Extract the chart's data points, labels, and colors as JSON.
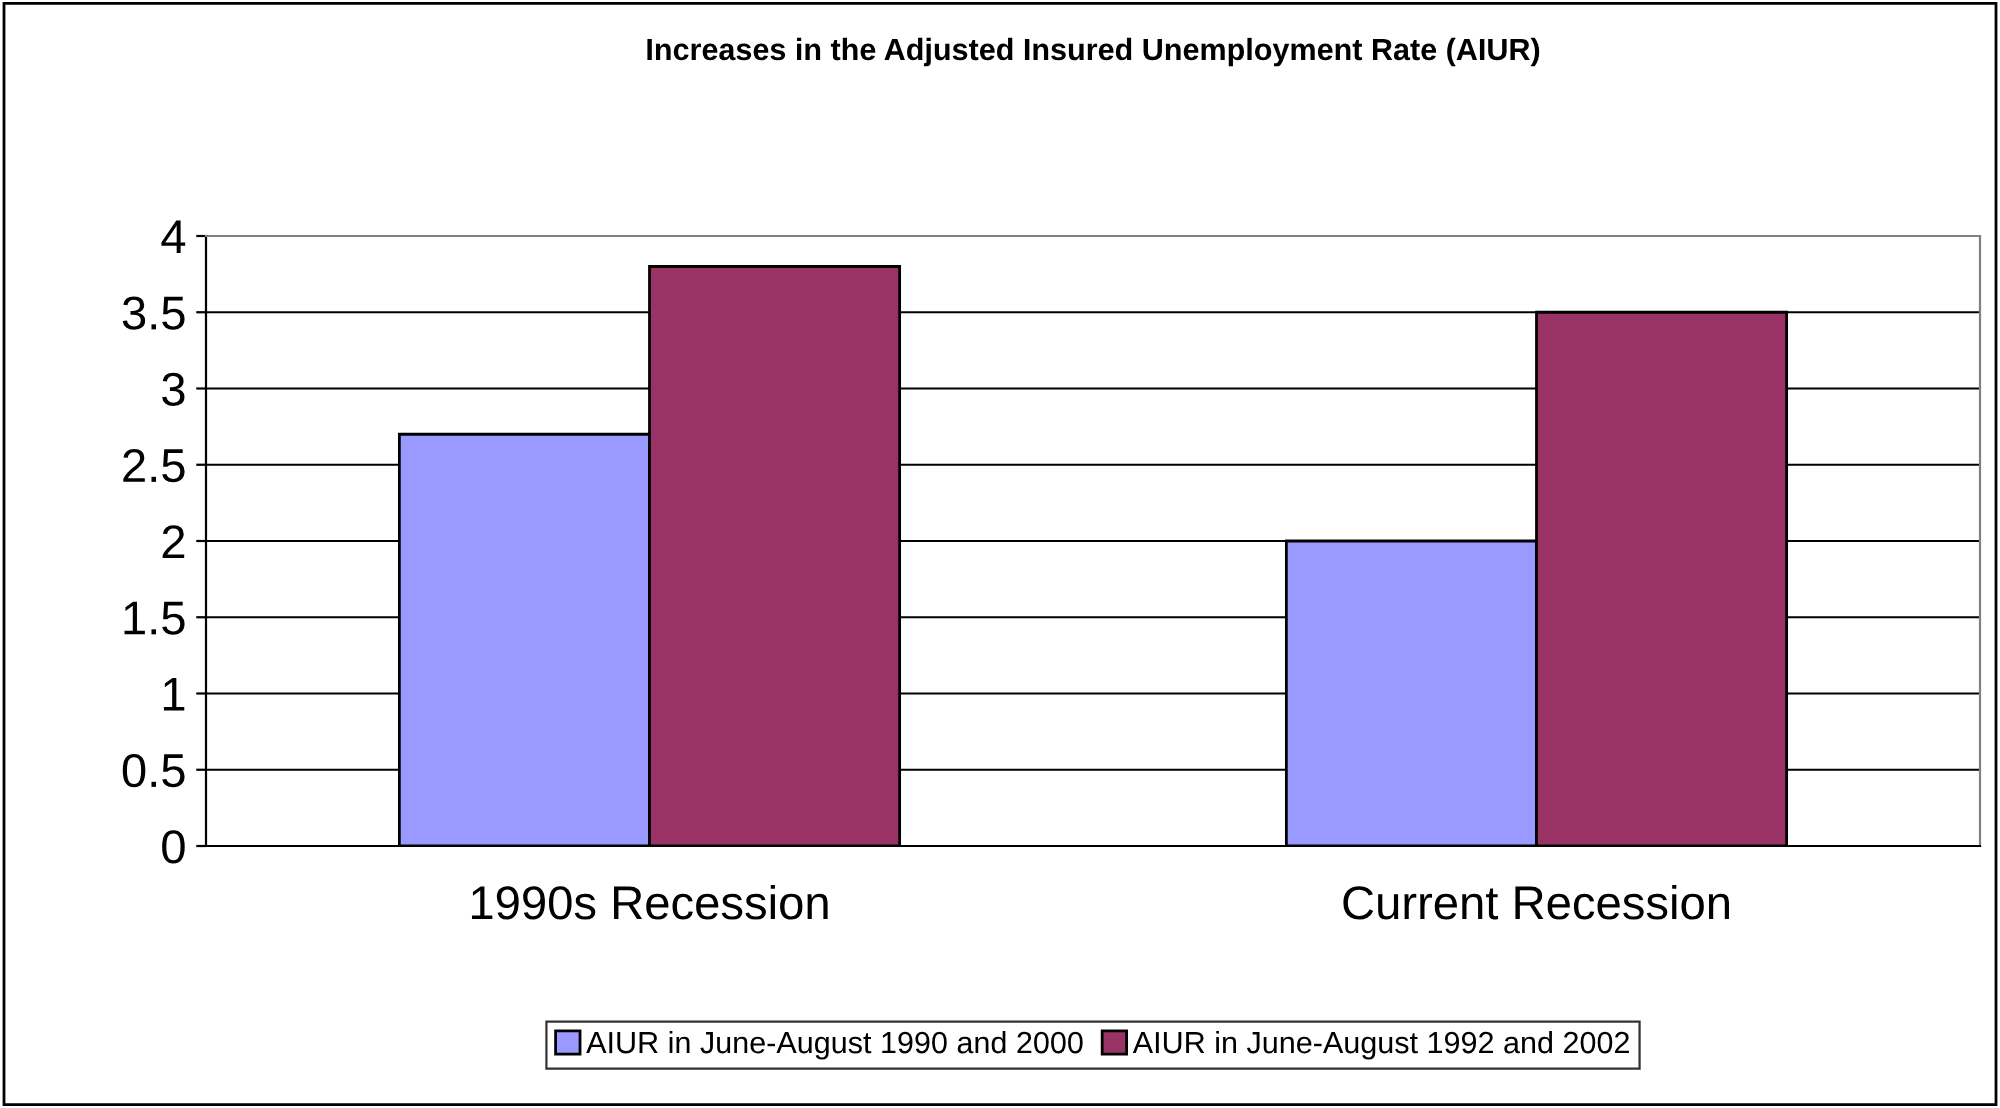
{
  "chart_data": {
    "type": "bar",
    "title": "Increases in the Adjusted Insured Unemployment Rate (AIUR)",
    "categories": [
      "1990s Recession",
      "Current Recession"
    ],
    "series": [
      {
        "name": "AIUR in June-August 1990 and 2000",
        "color": "#9999ff",
        "values": [
          2.7,
          2.0
        ]
      },
      {
        "name": "AIUR in June-August 1992 and 2002",
        "color": "#993366",
        "values": [
          3.8,
          3.5
        ]
      }
    ],
    "ylim": [
      0,
      4
    ],
    "yticks": [
      0,
      0.5,
      1,
      1.5,
      2,
      2.5,
      3,
      3.5,
      4
    ],
    "grid": "y",
    "legend": "bottom"
  }
}
